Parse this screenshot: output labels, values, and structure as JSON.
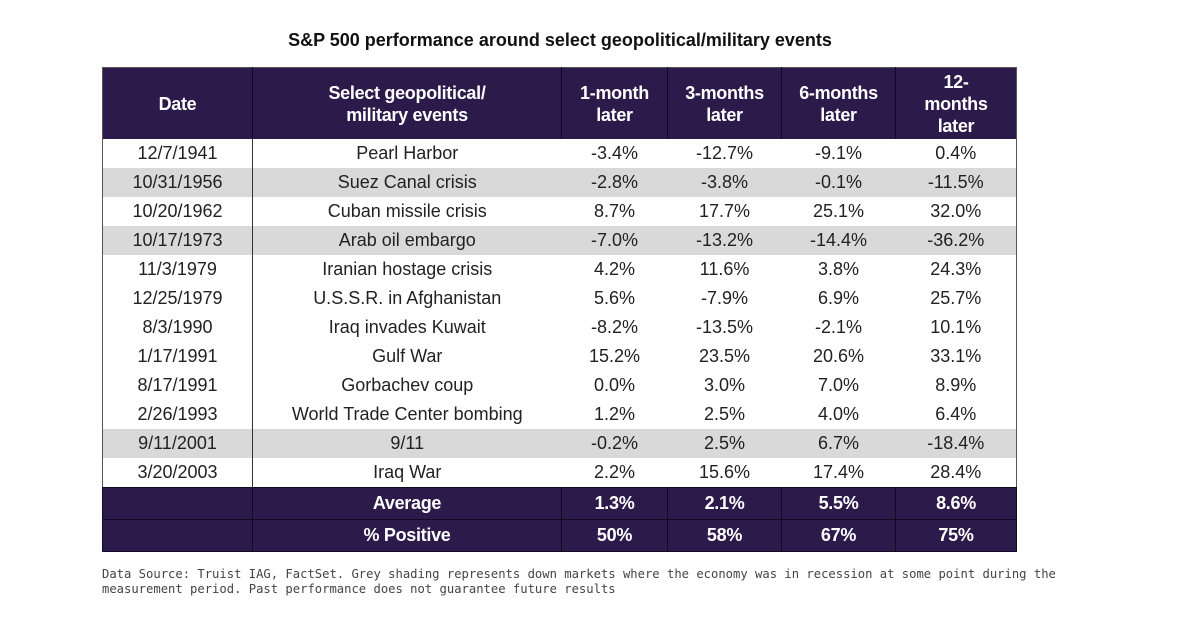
{
  "chart_data": {
    "type": "table",
    "title": "S&P 500 performance around select geopolitical/military events",
    "columns": [
      "Date",
      "Select geopolitical/ military events",
      "1-month later",
      "3-months later",
      "6-months later",
      "12- months later"
    ],
    "rows": [
      {
        "date": "12/7/1941",
        "event": "Pearl Harbor",
        "m1": "-3.4%",
        "m3": "-12.7%",
        "m6": "-9.1%",
        "m12": "0.4%",
        "shaded": false
      },
      {
        "date": "10/31/1956",
        "event": "Suez Canal crisis",
        "m1": "-2.8%",
        "m3": "-3.8%",
        "m6": "-0.1%",
        "m12": "-11.5%",
        "shaded": true
      },
      {
        "date": "10/20/1962",
        "event": "Cuban missile crisis",
        "m1": "8.7%",
        "m3": "17.7%",
        "m6": "25.1%",
        "m12": "32.0%",
        "shaded": false
      },
      {
        "date": "10/17/1973",
        "event": "Arab oil embargo",
        "m1": "-7.0%",
        "m3": "-13.2%",
        "m6": "-14.4%",
        "m12": "-36.2%",
        "shaded": true
      },
      {
        "date": "11/3/1979",
        "event": "Iranian hostage crisis",
        "m1": "4.2%",
        "m3": "11.6%",
        "m6": "3.8%",
        "m12": "24.3%",
        "shaded": false
      },
      {
        "date": "12/25/1979",
        "event": "U.S.S.R. in Afghanistan",
        "m1": "5.6%",
        "m3": "-7.9%",
        "m6": "6.9%",
        "m12": "25.7%",
        "shaded": false
      },
      {
        "date": "8/3/1990",
        "event": "Iraq invades Kuwait",
        "m1": "-8.2%",
        "m3": "-13.5%",
        "m6": "-2.1%",
        "m12": "10.1%",
        "shaded": false
      },
      {
        "date": "1/17/1991",
        "event": "Gulf War",
        "m1": "15.2%",
        "m3": "23.5%",
        "m6": "20.6%",
        "m12": "33.1%",
        "shaded": false
      },
      {
        "date": "8/17/1991",
        "event": "Gorbachev coup",
        "m1": "0.0%",
        "m3": "3.0%",
        "m6": "7.0%",
        "m12": "8.9%",
        "shaded": false
      },
      {
        "date": "2/26/1993",
        "event": "World Trade Center bombing",
        "m1": "1.2%",
        "m3": "2.5%",
        "m6": "4.0%",
        "m12": "6.4%",
        "shaded": false
      },
      {
        "date": "9/11/2001",
        "event": "9/11",
        "m1": "-0.2%",
        "m3": "2.5%",
        "m6": "6.7%",
        "m12": "-18.4%",
        "shaded": true
      },
      {
        "date": "3/20/2003",
        "event": "Iraq War",
        "m1": "2.2%",
        "m3": "15.6%",
        "m6": "17.4%",
        "m12": "28.4%",
        "shaded": false
      }
    ],
    "summary": [
      {
        "label": "Average",
        "m1": "1.3%",
        "m3": "2.1%",
        "m6": "5.5%",
        "m12": "8.6%"
      },
      {
        "label": "% Positive",
        "m1": "50%",
        "m3": "58%",
        "m6": "67%",
        "m12": "75%"
      }
    ],
    "note": "Data Source: Truist IAG, FactSet. Grey shading represents down markets where the economy was in recession at some point during the measurement period. Past performance does not guarantee future results"
  },
  "colors": {
    "header_bg": "#2b1a4a",
    "shaded_row": "#d9d9d9"
  }
}
